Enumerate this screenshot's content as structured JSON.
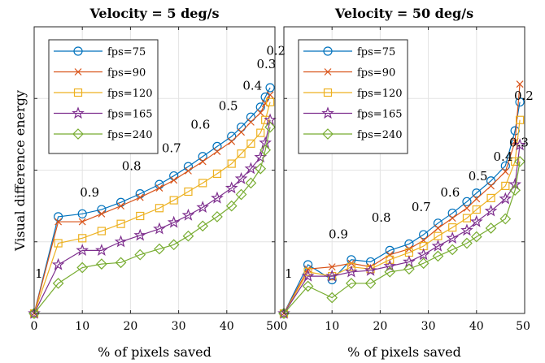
{
  "colors": {
    "fps=75": "#0072BD",
    "fps=90": "#D95319",
    "fps=120": "#EDB120",
    "fps=165": "#7E2F8E",
    "fps=240": "#77AC30"
  },
  "markers": {
    "fps=75": "circle",
    "fps=90": "x",
    "fps=120": "square",
    "fps=165": "star",
    "fps=240": "diamond"
  },
  "chart_data": [
    {
      "type": "line",
      "title": "Velocity = 5 deg/s",
      "xlabel": "% of pixels saved",
      "ylabel": "Visual difference energy",
      "xlim": [
        0,
        50
      ],
      "ylim": [
        0,
        4
      ],
      "xticks": [
        "0",
        "10",
        "20",
        "30",
        "40",
        "50"
      ],
      "grid": true,
      "legend": "top-left",
      "series": [
        {
          "name": "fps=75",
          "x": [
            0,
            5,
            10,
            14,
            18,
            22,
            26,
            29,
            32,
            35,
            38,
            41,
            43,
            45,
            47,
            48,
            49
          ],
          "y": [
            0,
            1.35,
            1.39,
            1.45,
            1.55,
            1.67,
            1.8,
            1.92,
            2.05,
            2.19,
            2.33,
            2.47,
            2.6,
            2.74,
            2.88,
            3.02,
            3.15
          ]
        },
        {
          "name": "fps=90",
          "x": [
            0,
            5,
            10,
            14,
            18,
            22,
            26,
            29,
            32,
            35,
            38,
            41,
            43,
            45,
            47,
            48,
            49
          ],
          "y": [
            0,
            1.28,
            1.28,
            1.39,
            1.5,
            1.62,
            1.75,
            1.86,
            1.99,
            2.12,
            2.26,
            2.4,
            2.53,
            2.67,
            2.8,
            2.93,
            3.05
          ]
        },
        {
          "name": "fps=120",
          "x": [
            0,
            5,
            10,
            14,
            18,
            22,
            26,
            29,
            32,
            35,
            38,
            41,
            43,
            45,
            47,
            48,
            49
          ],
          "y": [
            0,
            0.98,
            1.05,
            1.15,
            1.25,
            1.36,
            1.47,
            1.58,
            1.7,
            1.82,
            1.95,
            2.09,
            2.23,
            2.37,
            2.52,
            2.7,
            2.95
          ]
        },
        {
          "name": "fps=165",
          "x": [
            0,
            5,
            10,
            14,
            18,
            22,
            26,
            29,
            32,
            35,
            38,
            41,
            43,
            45,
            47,
            48,
            49
          ],
          "y": [
            0,
            0.68,
            0.88,
            0.88,
            1.0,
            1.09,
            1.18,
            1.27,
            1.37,
            1.48,
            1.61,
            1.75,
            1.88,
            2.02,
            2.18,
            2.38,
            2.7
          ]
        },
        {
          "name": "fps=240",
          "x": [
            0,
            5,
            10,
            14,
            18,
            22,
            26,
            29,
            32,
            35,
            38,
            41,
            43,
            45,
            47,
            48,
            49
          ],
          "y": [
            0,
            0.42,
            0.64,
            0.69,
            0.71,
            0.82,
            0.9,
            0.96,
            1.08,
            1.22,
            1.35,
            1.5,
            1.66,
            1.82,
            2.02,
            2.28,
            2.6
          ]
        }
      ],
      "annotations": [
        {
          "text": "1",
          "x": 0.2,
          "y": 0.5
        },
        {
          "text": "0.9",
          "x": 9.5,
          "y": 1.63
        },
        {
          "text": "0.8",
          "x": 18.2,
          "y": 2.0
        },
        {
          "text": "0.7",
          "x": 26.5,
          "y": 2.25
        },
        {
          "text": "0.6",
          "x": 32.5,
          "y": 2.58
        },
        {
          "text": "0.5",
          "x": 38.3,
          "y": 2.84
        },
        {
          "text": "0.4",
          "x": 43.3,
          "y": 3.12
        },
        {
          "text": "0.3",
          "x": 46.2,
          "y": 3.42
        },
        {
          "text": "0.2",
          "x": 48.2,
          "y": 3.61
        }
      ]
    },
    {
      "type": "line",
      "title": "Velocity = 50 deg/s",
      "xlabel": "% of pixels saved",
      "ylabel": "",
      "xlim": [
        0,
        50
      ],
      "ylim": [
        0,
        4
      ],
      "xticks": [
        "0",
        "10",
        "20",
        "30",
        "40",
        "50"
      ],
      "grid": true,
      "legend": "top-left",
      "series": [
        {
          "name": "fps=75",
          "x": [
            0,
            5,
            10,
            14,
            18,
            22,
            26,
            29,
            32,
            35,
            38,
            40,
            43,
            46,
            48,
            49
          ],
          "y": [
            0,
            0.68,
            0.47,
            0.75,
            0.72,
            0.88,
            0.97,
            1.1,
            1.26,
            1.4,
            1.56,
            1.68,
            1.85,
            2.06,
            2.55,
            2.95
          ]
        },
        {
          "name": "fps=90",
          "x": [
            0,
            5,
            10,
            14,
            18,
            22,
            26,
            29,
            32,
            35,
            38,
            40,
            43,
            46,
            48,
            49
          ],
          "y": [
            0,
            0.62,
            0.65,
            0.7,
            0.65,
            0.82,
            0.9,
            1.02,
            1.19,
            1.33,
            1.47,
            1.6,
            1.78,
            1.98,
            2.4,
            3.2
          ]
        },
        {
          "name": "fps=120",
          "x": [
            0,
            5,
            10,
            14,
            18,
            22,
            26,
            29,
            32,
            35,
            38,
            40,
            43,
            46,
            48,
            49
          ],
          "y": [
            0,
            0.58,
            0.52,
            0.65,
            0.62,
            0.75,
            0.85,
            0.94,
            1.08,
            1.2,
            1.33,
            1.45,
            1.61,
            1.78,
            2.12,
            2.7
          ]
        },
        {
          "name": "fps=165",
          "x": [
            0,
            5,
            10,
            14,
            18,
            22,
            26,
            29,
            32,
            35,
            38,
            40,
            43,
            46,
            48,
            49
          ],
          "y": [
            0,
            0.52,
            0.52,
            0.58,
            0.6,
            0.66,
            0.72,
            0.82,
            0.94,
            1.05,
            1.16,
            1.28,
            1.43,
            1.6,
            1.8,
            2.35
          ]
        },
        {
          "name": "fps=240",
          "x": [
            0,
            5,
            10,
            14,
            18,
            22,
            26,
            29,
            32,
            35,
            38,
            40,
            43,
            46,
            48,
            49
          ],
          "y": [
            0,
            0.38,
            0.22,
            0.42,
            0.42,
            0.58,
            0.62,
            0.7,
            0.8,
            0.89,
            0.98,
            1.07,
            1.19,
            1.32,
            1.72,
            2.12
          ]
        }
      ],
      "annotations": [
        {
          "text": "1",
          "x": 0.2,
          "y": 0.5
        },
        {
          "text": "0.9",
          "x": 9.3,
          "y": 1.05
        },
        {
          "text": "0.8",
          "x": 18.2,
          "y": 1.28
        },
        {
          "text": "0.7",
          "x": 26.5,
          "y": 1.43
        },
        {
          "text": "0.6",
          "x": 32.5,
          "y": 1.63
        },
        {
          "text": "0.5",
          "x": 38.3,
          "y": 1.86
        },
        {
          "text": "0.4",
          "x": 43.5,
          "y": 2.13
        },
        {
          "text": "0.3",
          "x": 46.8,
          "y": 2.33
        },
        {
          "text": "0.2",
          "x": 47.8,
          "y": 2.98
        }
      ]
    }
  ]
}
